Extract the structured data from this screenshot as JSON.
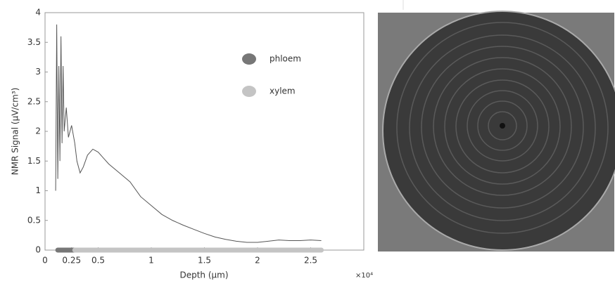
{
  "chart_data": {
    "type": "line",
    "xlabel": "Depth (μm)",
    "ylabel": "NMR Signal (μV/cm³)",
    "x_multiplier": "×10⁴",
    "xlim": [
      0,
      3
    ],
    "xticks": [
      0,
      0.25,
      0.5,
      1,
      1.5,
      2,
      2.5
    ],
    "ylim": [
      0,
      4
    ],
    "yticks": [
      0,
      0.5,
      1,
      1.5,
      2,
      2.5,
      3,
      3.5,
      4
    ],
    "series": [
      {
        "color": "#555555",
        "x": [
          0.1,
          0.11,
          0.12,
          0.13,
          0.14,
          0.15,
          0.16,
          0.17,
          0.18,
          0.2,
          0.22,
          0.25,
          0.28,
          0.3,
          0.33,
          0.36,
          0.4,
          0.45,
          0.5,
          0.55,
          0.6,
          0.7,
          0.8,
          0.9,
          1.0,
          1.1,
          1.2,
          1.3,
          1.4,
          1.5,
          1.6,
          1.7,
          1.8,
          1.9,
          2.0,
          2.1,
          2.2,
          2.3,
          2.4,
          2.5,
          2.6
        ],
        "values": [
          1.0,
          3.8,
          1.2,
          3.1,
          1.5,
          3.6,
          1.8,
          3.1,
          2.0,
          2.4,
          1.9,
          2.1,
          1.8,
          1.5,
          1.3,
          1.4,
          1.6,
          1.7,
          1.65,
          1.55,
          1.45,
          1.3,
          1.15,
          0.9,
          0.75,
          0.6,
          0.5,
          0.42,
          0.35,
          0.28,
          0.22,
          0.18,
          0.15,
          0.13,
          0.13,
          0.15,
          0.17,
          0.16,
          0.16,
          0.17,
          0.16
        ]
      }
    ],
    "tissue_bands": [
      {
        "name": "phloem",
        "color": "#777777",
        "xrange": [
          0.12,
          0.28
        ]
      },
      {
        "name": "xylem",
        "color": "#c4c4c4",
        "xrange": [
          0.28,
          2.6
        ]
      }
    ]
  }
}
